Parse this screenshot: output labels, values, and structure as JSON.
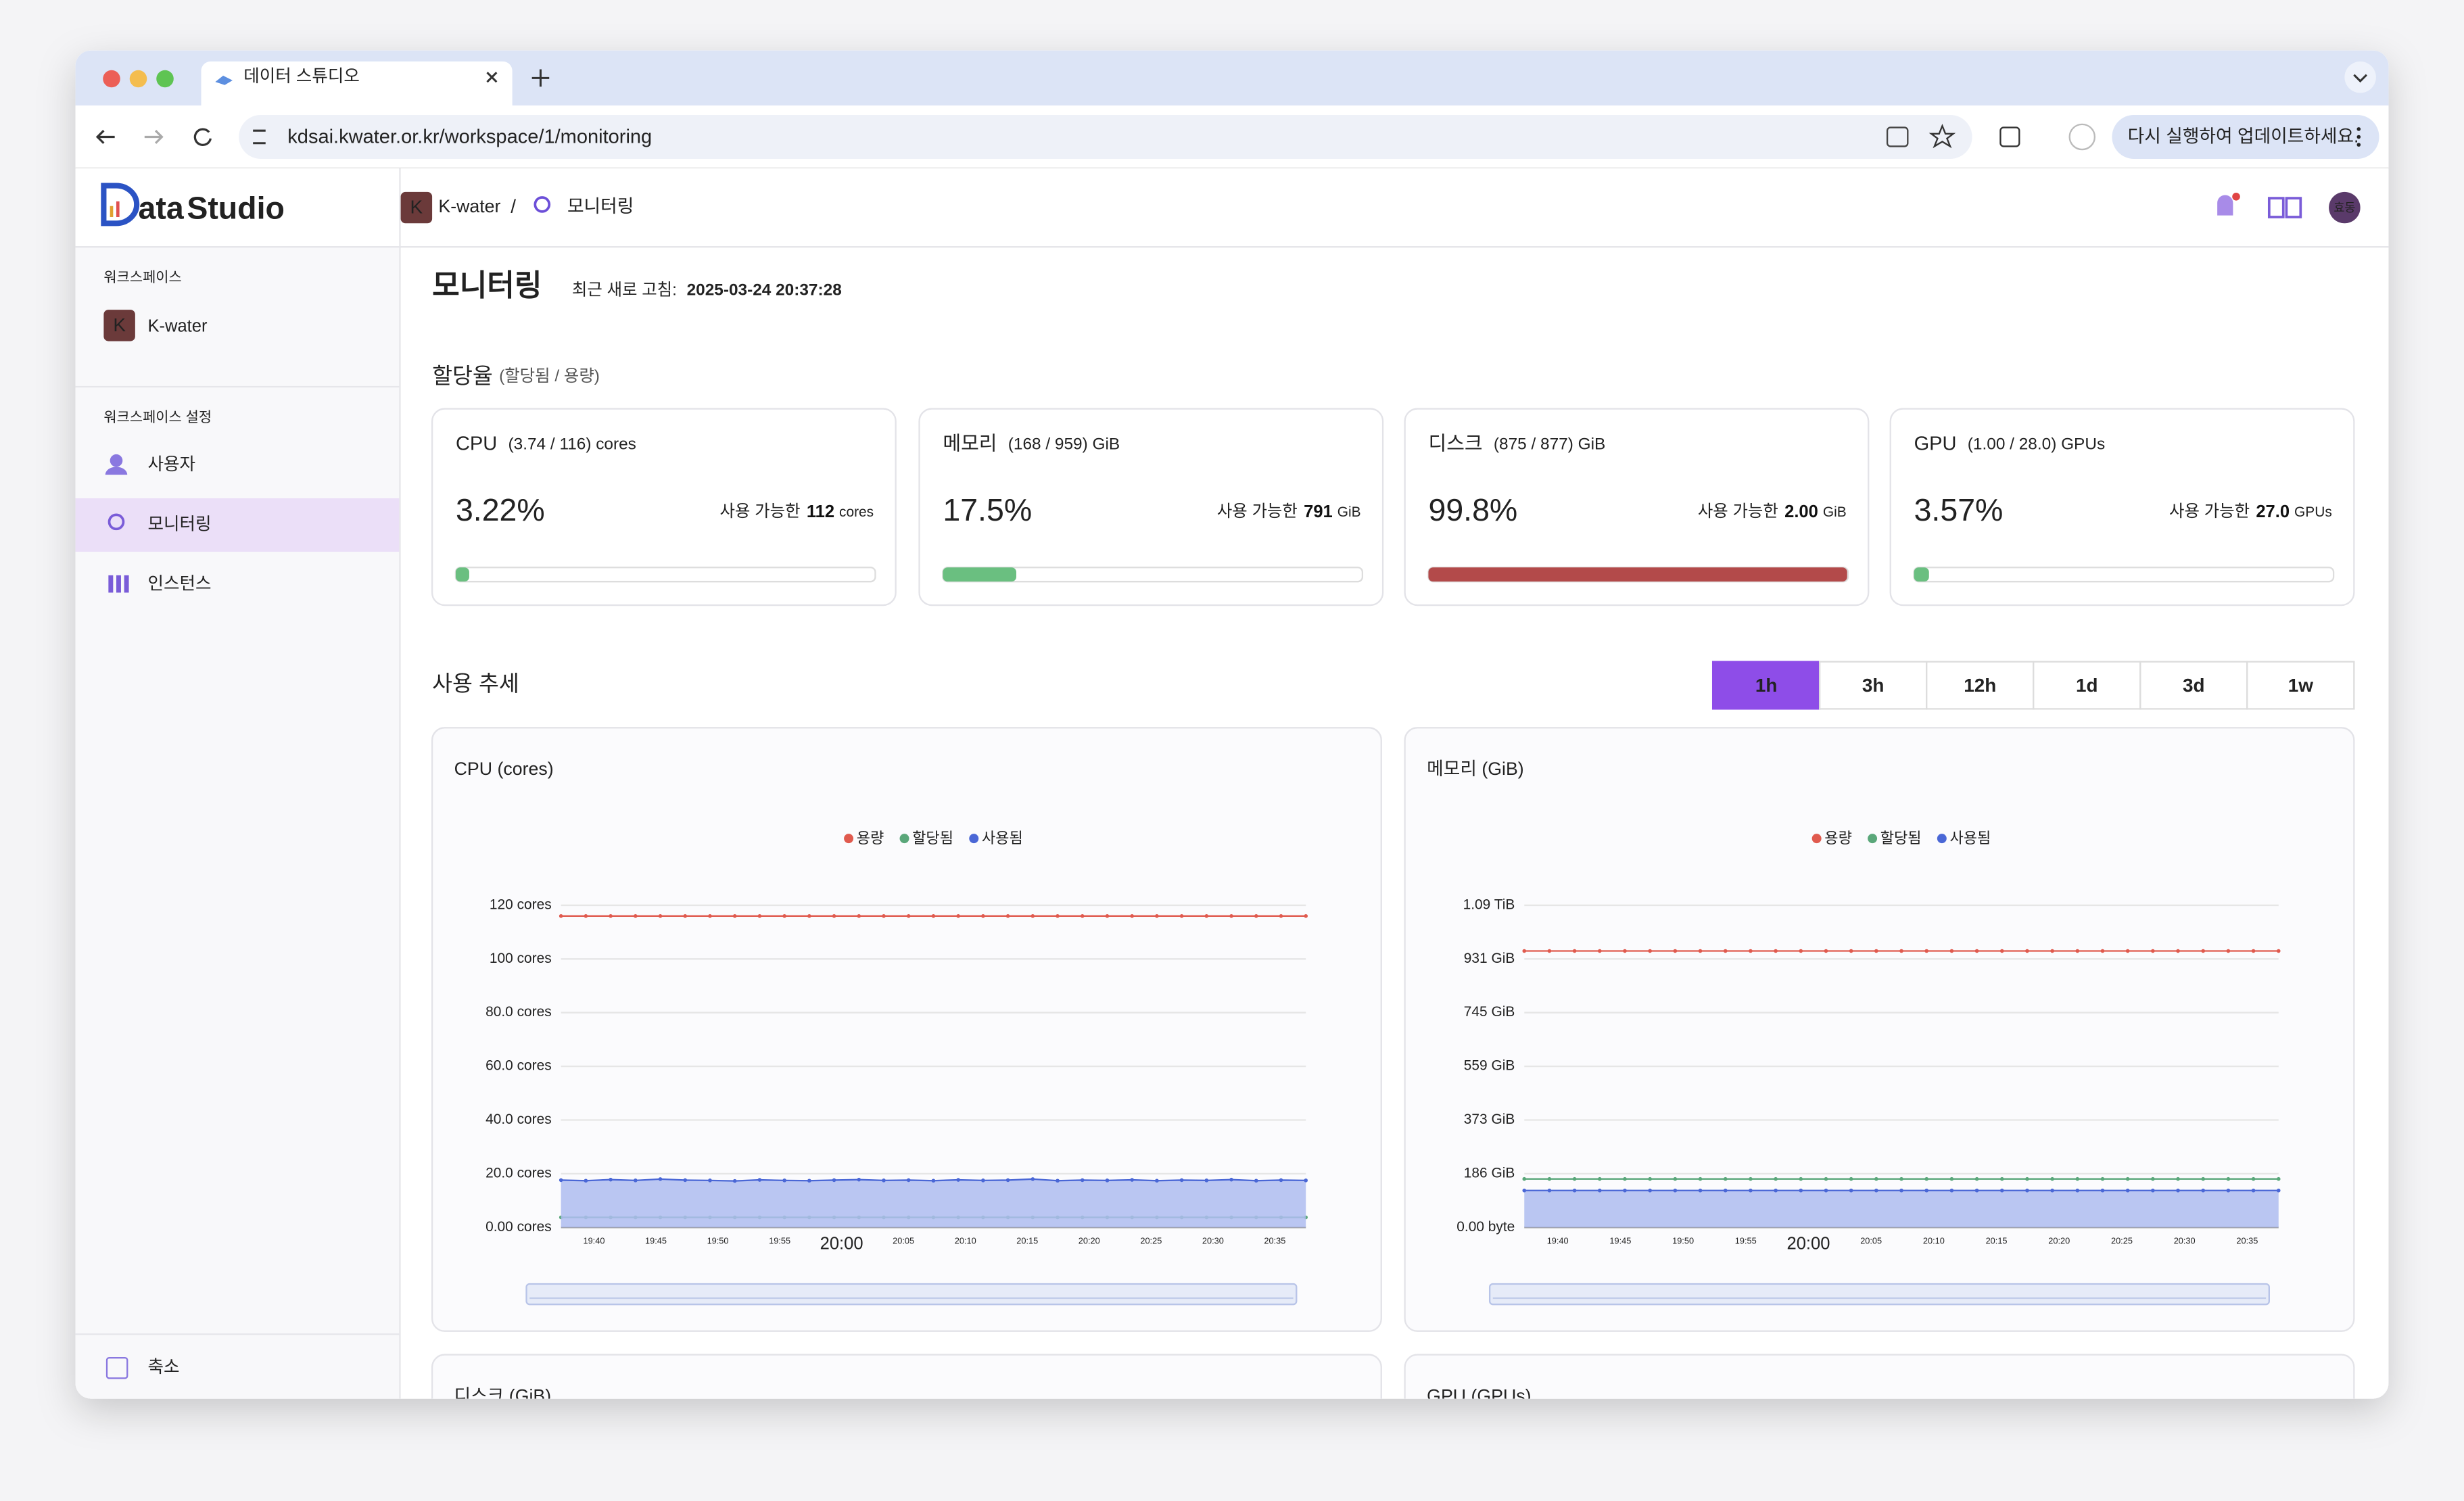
{
  "browser": {
    "tab_title": "데이터 스튜디오",
    "url": "kdsai.kwater.or.kr/workspace/1/monitoring",
    "update_button": "다시 실행하여 업데이트하세요."
  },
  "header": {
    "logo_a": "ata",
    "logo_b": "Studio",
    "workspace_badge": "K",
    "workspace": "K-water",
    "separator": "/",
    "page": "모니터링",
    "avatar": "효동"
  },
  "sidebar": {
    "section1": "워크스페이스",
    "workspace_badge": "K",
    "workspace": "K-water",
    "section2": "워크스페이스 설정",
    "items": [
      "사용자",
      "모니터링",
      "인스턴스"
    ],
    "collapse": "축소"
  },
  "page": {
    "title": "모니터링",
    "refresh_label": "최근 새로 고침:",
    "refresh_time": "2025-03-24 20:37:28"
  },
  "allocation": {
    "title": "할당율",
    "subtitle": "(할당됨 / 용량)",
    "available_label": "사용 가능한",
    "cards": [
      {
        "name": "CPU",
        "detail": "(3.74 / 116) cores",
        "percent": {
          "value": 3.22,
          "label": "3.22%"
        },
        "available": "112",
        "unit": "cores",
        "color": "#6abf80"
      },
      {
        "name": "메모리",
        "detail": "(168 / 959) GiB",
        "percent": {
          "value": 17.5,
          "label": "17.5%"
        },
        "available": "791",
        "unit": "GiB",
        "color": "#6abf80"
      },
      {
        "name": "디스크",
        "detail": "(875 / 877) GiB",
        "percent": {
          "value": 99.8,
          "label": "99.8%"
        },
        "available": "2.00",
        "unit": "GiB",
        "color": "#b34a4a"
      },
      {
        "name": "GPU",
        "detail": "(1.00 / 28.0) GPUs",
        "percent": {
          "value": 3.57,
          "label": "3.57%"
        },
        "available": "27.0",
        "unit": "GPUs",
        "color": "#6abf80"
      }
    ]
  },
  "trend": {
    "title": "사용 추세",
    "ranges": [
      "1h",
      "3h",
      "12h",
      "1d",
      "3d",
      "1w"
    ],
    "active_range": "1h",
    "more_charts": [
      "디스크 (GiB)",
      "GPU (GPUs)"
    ],
    "charts": [
      {
        "type": "line",
        "title": "CPU (cores)",
        "ylim": [
          0,
          120
        ],
        "yticks": [
          {
            "value": 0,
            "label": "0.00 cores"
          },
          {
            "value": 20,
            "label": "20.0 cores"
          },
          {
            "value": 40,
            "label": "40.0 cores"
          },
          {
            "value": 60,
            "label": "60.0 cores"
          },
          {
            "value": 80,
            "label": "80.0 cores"
          },
          {
            "value": 100,
            "label": "100 cores"
          },
          {
            "value": 120,
            "label": "120 cores"
          }
        ],
        "xticks": [
          "19:40",
          "19:45",
          "19:50",
          "19:55",
          "20:00",
          "20:05",
          "20:10",
          "20:15",
          "20:20",
          "20:25",
          "20:30",
          "20:35"
        ],
        "grid": true,
        "series": [
          {
            "name": "용량",
            "color": "#e05a4e",
            "values": [
              116,
              116,
              116,
              116,
              116,
              116,
              116,
              116,
              116,
              116,
              116,
              116,
              116,
              116,
              116,
              116,
              116,
              116,
              116,
              116,
              116,
              116,
              116,
              116,
              116,
              116,
              116,
              116,
              116,
              116,
              116
            ]
          },
          {
            "name": "할당됨",
            "color": "#5aa77a",
            "values": [
              3.74,
              3.74,
              3.74,
              3.74,
              3.74,
              3.74,
              3.74,
              3.74,
              3.74,
              3.74,
              3.74,
              3.74,
              3.74,
              3.74,
              3.74,
              3.74,
              3.74,
              3.74,
              3.74,
              3.74,
              3.74,
              3.74,
              3.74,
              3.74,
              3.74,
              3.74,
              3.74,
              3.74,
              3.74,
              3.74,
              3.74
            ]
          },
          {
            "name": "사용됨",
            "color": "#4a67d6",
            "area": true,
            "values": [
              17.6,
              17.4,
              17.8,
              17.5,
              18,
              17.6,
              17.5,
              17.3,
              17.7,
              17.5,
              17.4,
              17.6,
              17.8,
              17.5,
              17.6,
              17.4,
              17.7,
              17.5,
              17.6,
              18,
              17.4,
              17.6,
              17.5,
              17.7,
              17.4,
              17.6,
              17.5,
              17.8,
              17.4,
              17.6,
              17.5
            ]
          }
        ]
      },
      {
        "type": "line",
        "title": "메모리 (GiB)",
        "ylim": [
          0,
          1117.5
        ],
        "yticks": [
          {
            "value": 0,
            "label": "0.00 byte"
          },
          {
            "value": 186.25,
            "label": "186 GiB"
          },
          {
            "value": 372.5,
            "label": "373 GiB"
          },
          {
            "value": 558.75,
            "label": "559 GiB"
          },
          {
            "value": 745,
            "label": "745 GiB"
          },
          {
            "value": 931.25,
            "label": "931 GiB"
          },
          {
            "value": 1117.5,
            "label": "1.09 TiB"
          }
        ],
        "xticks": [
          "19:40",
          "19:45",
          "19:50",
          "19:55",
          "20:00",
          "20:05",
          "20:10",
          "20:15",
          "20:20",
          "20:25",
          "20:30",
          "20:35"
        ],
        "grid": true,
        "series": [
          {
            "name": "용량",
            "color": "#e05a4e",
            "values": [
              959,
              959,
              959,
              959,
              959,
              959,
              959,
              959,
              959,
              959,
              959,
              959,
              959,
              959,
              959,
              959,
              959,
              959,
              959,
              959,
              959,
              959,
              959,
              959,
              959,
              959,
              959,
              959,
              959,
              959,
              959
            ]
          },
          {
            "name": "할당됨",
            "color": "#5aa77a",
            "values": [
              168,
              168,
              168,
              168,
              168,
              168,
              168,
              168,
              168,
              168,
              168,
              168,
              168,
              168,
              168,
              168,
              168,
              168,
              168,
              168,
              168,
              168,
              168,
              168,
              168,
              168,
              168,
              168,
              168,
              168,
              168
            ]
          },
          {
            "name": "사용됨",
            "color": "#4a67d6",
            "area": true,
            "values": [
              128,
              128,
              128,
              128,
              128,
              128,
              128,
              128,
              128,
              128,
              128,
              128,
              128,
              128,
              128,
              128,
              128,
              128,
              128,
              128,
              128,
              128,
              128,
              128,
              128,
              128,
              128,
              128,
              128,
              128,
              128
            ]
          }
        ]
      }
    ]
  }
}
